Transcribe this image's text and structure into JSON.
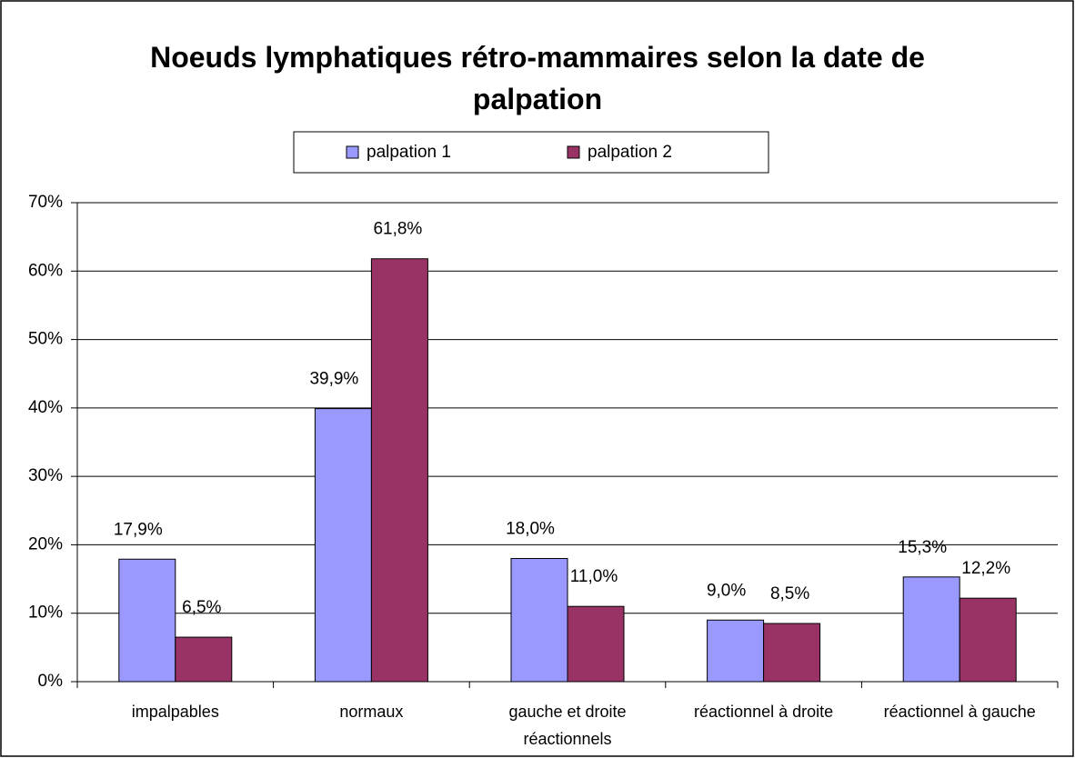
{
  "chart_data": {
    "type": "bar",
    "title": "Noeuds lymphatiques rétro-mammaires selon la date de palpation",
    "categories": [
      "impalpables",
      "normaux",
      "gauche et droite réactionnels",
      "réactionnel à droite",
      "réactionnel à gauche"
    ],
    "series": [
      {
        "name": "palpation 1",
        "color": "#9999ff",
        "values": [
          17.9,
          39.9,
          18.0,
          9.0,
          15.3
        ],
        "value_labels": [
          "17,9%",
          "39,9%",
          "18,0%",
          "9,0%",
          "15,3%"
        ]
      },
      {
        "name": "palpation 2",
        "color": "#993366",
        "values": [
          6.5,
          61.8,
          11.0,
          8.5,
          12.2
        ],
        "value_labels": [
          "6,5%",
          "61,8%",
          "11,0%",
          "8,5%",
          "12,2%"
        ]
      }
    ],
    "ylim": [
      0,
      70
    ],
    "yticks": [
      {
        "value": 0,
        "label": "0%"
      },
      {
        "value": 10,
        "label": "10%"
      },
      {
        "value": 20,
        "label": "20%"
      },
      {
        "value": 30,
        "label": "30%"
      },
      {
        "value": 40,
        "label": "40%"
      },
      {
        "value": 50,
        "label": "50%"
      },
      {
        "value": 60,
        "label": "60%"
      },
      {
        "value": 70,
        "label": "70%"
      }
    ],
    "grid": true,
    "legend": "top"
  }
}
